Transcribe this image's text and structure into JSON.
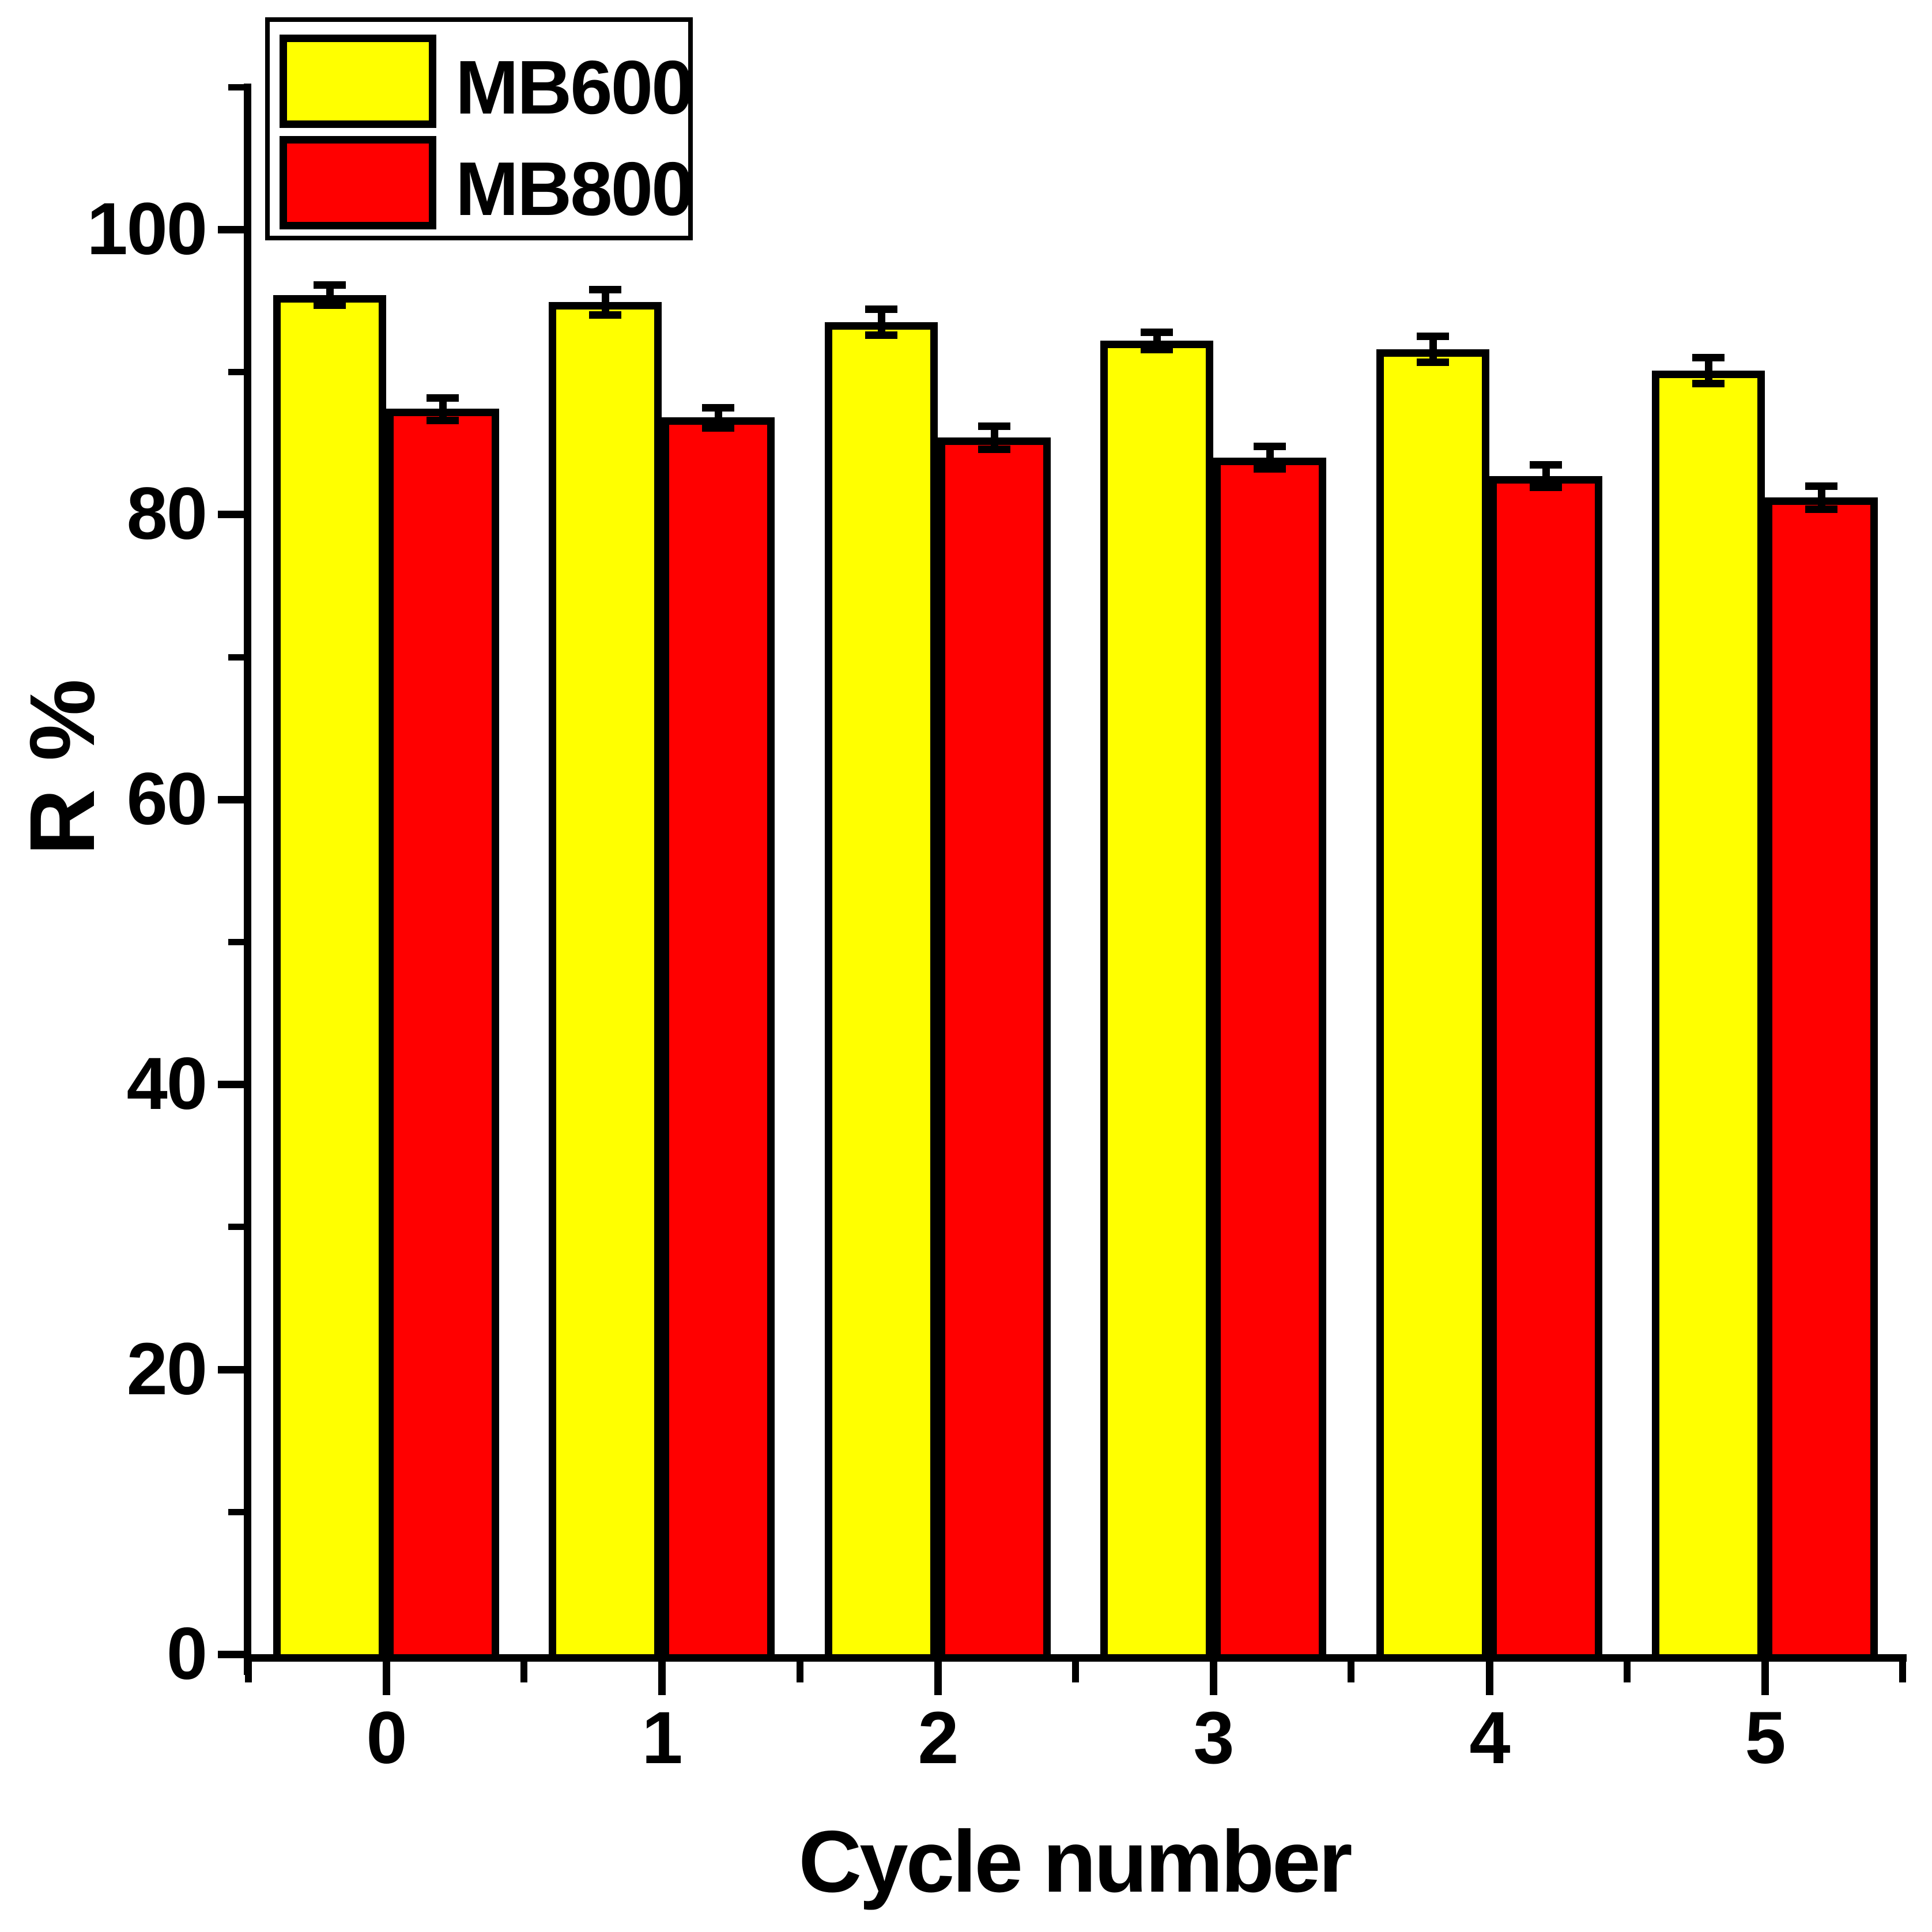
{
  "chart_data": {
    "type": "bar",
    "title": "",
    "xlabel": "Cycle number",
    "ylabel": "R %",
    "categories": [
      "0",
      "1",
      "2",
      "3",
      "4",
      "5"
    ],
    "series": [
      {
        "name": "MB600",
        "color": "#ffff00",
        "values": [
          95.4,
          94.9,
          93.5,
          92.2,
          91.6,
          90.1
        ],
        "errors": [
          0.7,
          0.9,
          0.9,
          0.6,
          0.9,
          0.9
        ]
      },
      {
        "name": "MB800",
        "color": "#ff0000",
        "values": [
          87.4,
          86.8,
          85.4,
          84.0,
          82.7,
          81.2
        ],
        "errors": [
          0.8,
          0.7,
          0.8,
          0.8,
          0.8,
          0.8
        ]
      }
    ],
    "ylim": [
      0,
      110
    ],
    "yticks_major": [
      0,
      20,
      40,
      60,
      80,
      100
    ],
    "ytick_labels": [
      "0",
      "20",
      "40",
      "60",
      "80",
      "100"
    ],
    "yticks_minor_step": 10,
    "grid": false,
    "legend_position": "top-left",
    "bar_border_color": "#000000",
    "error_bar_color": "#000000",
    "axis_color": "#000000",
    "background_color": "#ffffff"
  }
}
